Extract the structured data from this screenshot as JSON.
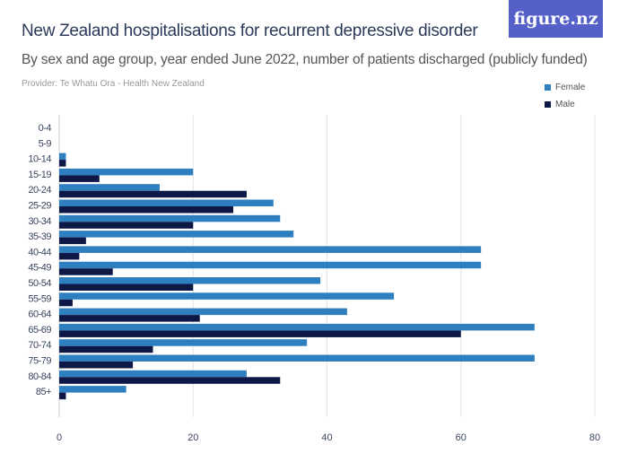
{
  "header": {
    "title": "New Zealand hospitalisations for recurrent depressive disorder",
    "subtitle": "By sex and age group, year ended June 2022, number of patients discharged (publicly funded)",
    "provider": "Provider: Te Whatu Ora - Health New Zealand",
    "logo": "figure.nz"
  },
  "chart_data": {
    "type": "bar",
    "orientation": "horizontal",
    "categories": [
      "0-4",
      "5-9",
      "10-14",
      "15-19",
      "20-24",
      "25-29",
      "30-34",
      "35-39",
      "40-44",
      "45-49",
      "50-54",
      "55-59",
      "60-64",
      "65-69",
      "70-74",
      "75-79",
      "80-84",
      "85+"
    ],
    "series": [
      {
        "name": "Female",
        "color": "#2e7fbf",
        "values": [
          0,
          0,
          1,
          20,
          15,
          32,
          33,
          35,
          63,
          63,
          39,
          50,
          43,
          71,
          37,
          71,
          28,
          10
        ]
      },
      {
        "name": "Male",
        "color": "#0d1846",
        "values": [
          0,
          0,
          1,
          6,
          28,
          26,
          20,
          4,
          3,
          8,
          20,
          2,
          21,
          60,
          14,
          11,
          33,
          1
        ]
      }
    ],
    "xlim": [
      0,
      80
    ],
    "xticks": [
      "0",
      "20",
      "40",
      "60",
      "80"
    ],
    "grid": true,
    "legend": "top-right"
  }
}
